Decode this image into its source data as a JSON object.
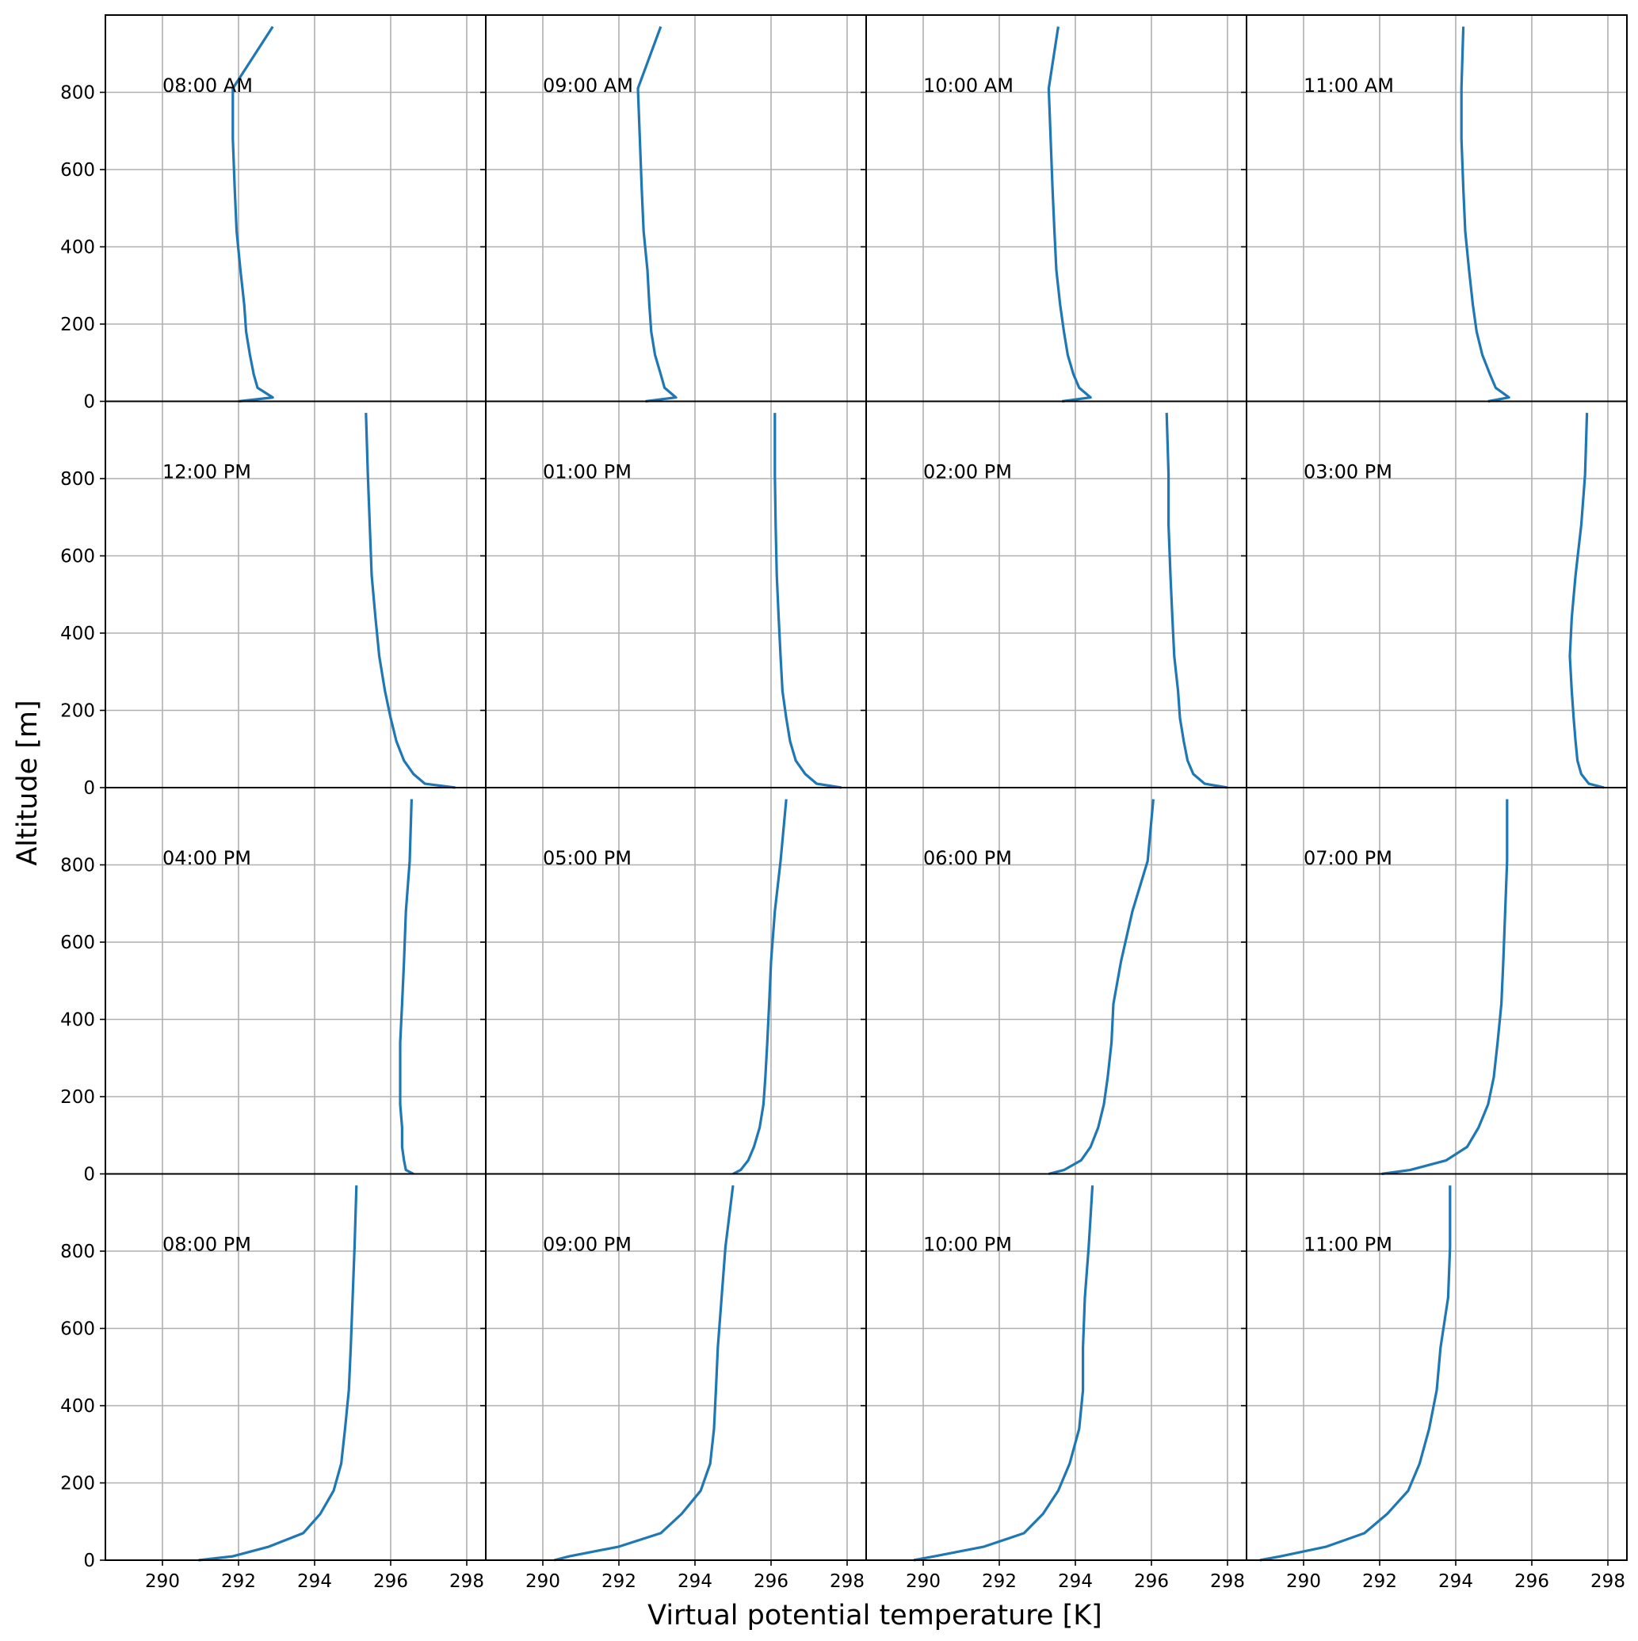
{
  "chart_data": {
    "type": "line",
    "layout": "4x4 grid of panels sharing x and y axes",
    "xlabel": "Virtual potential temperature [K]",
    "ylabel": "Altitude [m]",
    "xlim": [
      288.5,
      298.5
    ],
    "ylim": [
      0,
      1000
    ],
    "xticks": [
      290,
      292,
      294,
      296,
      298
    ],
    "yticks": [
      0,
      200,
      400,
      600,
      800
    ],
    "grid": true,
    "line_color": "#1f77b4",
    "altitudes": [
      0,
      10,
      35,
      70,
      120,
      180,
      250,
      340,
      440,
      550,
      680,
      810,
      970
    ],
    "panels": [
      {
        "label": "08:00 AM",
        "theta": [
          292.0,
          292.9,
          292.5,
          292.4,
          292.3,
          292.2,
          292.15,
          292.05,
          291.95,
          291.9,
          291.85,
          291.85,
          292.9
        ]
      },
      {
        "label": "09:00 AM",
        "theta": [
          292.7,
          293.5,
          293.2,
          293.1,
          292.95,
          292.85,
          292.8,
          292.75,
          292.65,
          292.6,
          292.55,
          292.5,
          293.1
        ]
      },
      {
        "label": "10:00 AM",
        "theta": [
          293.65,
          294.4,
          294.1,
          293.95,
          293.8,
          293.7,
          293.6,
          293.5,
          293.45,
          293.4,
          293.35,
          293.3,
          293.55
        ]
      },
      {
        "label": "11:00 AM",
        "theta": [
          294.85,
          295.4,
          295.05,
          294.9,
          294.7,
          294.55,
          294.45,
          294.35,
          294.25,
          294.2,
          294.15,
          294.15,
          294.2
        ]
      },
      {
        "label": "12:00 PM",
        "theta": [
          297.7,
          296.9,
          296.6,
          296.35,
          296.15,
          296.0,
          295.85,
          295.7,
          295.6,
          295.5,
          295.45,
          295.4,
          295.35
        ]
      },
      {
        "label": "01:00 PM",
        "theta": [
          297.85,
          297.2,
          296.9,
          296.65,
          296.5,
          296.4,
          296.3,
          296.25,
          296.2,
          296.15,
          296.12,
          296.1,
          296.1
        ]
      },
      {
        "label": "02:00 PM",
        "theta": [
          298.0,
          297.4,
          297.1,
          296.95,
          296.85,
          296.75,
          296.7,
          296.6,
          296.55,
          296.5,
          296.45,
          296.45,
          296.4
        ]
      },
      {
        "label": "03:00 PM",
        "theta": [
          297.9,
          297.5,
          297.3,
          297.2,
          297.15,
          297.1,
          297.05,
          297.0,
          297.05,
          297.15,
          297.3,
          297.4,
          297.45
        ]
      },
      {
        "label": "04:00 PM",
        "theta": [
          296.6,
          296.4,
          296.35,
          296.3,
          296.3,
          296.25,
          296.25,
          296.25,
          296.3,
          296.35,
          296.4,
          296.5,
          296.55
        ]
      },
      {
        "label": "05:00 PM",
        "theta": [
          295.0,
          295.2,
          295.4,
          295.55,
          295.7,
          295.8,
          295.85,
          295.9,
          295.95,
          296.0,
          296.1,
          296.25,
          296.4
        ]
      },
      {
        "label": "06:00 PM",
        "theta": [
          293.3,
          293.7,
          294.15,
          294.4,
          294.6,
          294.75,
          294.85,
          294.95,
          295.0,
          295.2,
          295.5,
          295.9,
          296.05
        ]
      },
      {
        "label": "07:00 PM",
        "theta": [
          292.05,
          292.8,
          293.75,
          294.3,
          294.6,
          294.85,
          295.0,
          295.1,
          295.2,
          295.25,
          295.3,
          295.35,
          295.35
        ]
      },
      {
        "label": "08:00 PM",
        "theta": [
          290.95,
          291.85,
          292.8,
          293.7,
          294.15,
          294.5,
          294.7,
          294.8,
          294.9,
          294.95,
          295.0,
          295.05,
          295.1
        ]
      },
      {
        "label": "09:00 PM",
        "theta": [
          290.3,
          290.7,
          292.0,
          293.1,
          293.65,
          294.15,
          294.4,
          294.5,
          294.55,
          294.6,
          294.7,
          294.8,
          295.0
        ]
      },
      {
        "label": "10:00 PM",
        "theta": [
          289.75,
          290.3,
          291.6,
          292.65,
          293.15,
          293.55,
          293.85,
          294.1,
          294.2,
          294.2,
          294.25,
          294.35,
          294.45
        ]
      },
      {
        "label": "11:00 PM",
        "theta": [
          288.85,
          289.4,
          290.6,
          291.6,
          292.2,
          292.75,
          293.05,
          293.3,
          293.5,
          293.6,
          293.8,
          293.85,
          293.85
        ]
      }
    ]
  }
}
